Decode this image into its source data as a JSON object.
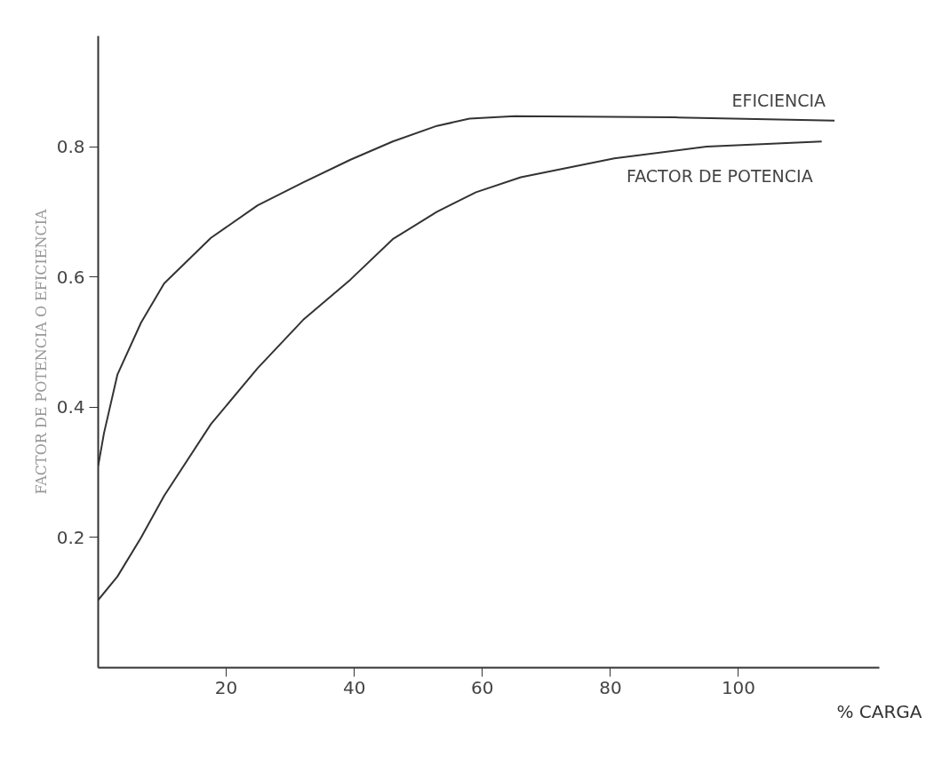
{
  "chart_data": {
    "type": "line",
    "xlabel": "% CARGA",
    "ylabel": "FACTOR DE POTENCIA O EFICIENCIA",
    "xlim": [
      0,
      122
    ],
    "ylim": [
      0,
      0.97
    ],
    "xticks": [
      20,
      40,
      60,
      80,
      100
    ],
    "yticks": [
      0.2,
      0.4,
      0.6,
      0.8
    ],
    "grid": false,
    "legend": false,
    "marker": "none",
    "line_style": "solid",
    "series": [
      {
        "name": "EFICIENCIA",
        "color": "#333333",
        "x": [
          0,
          0.9,
          3,
          6.7,
          10.3,
          17.6,
          24.9,
          32,
          39.4,
          46,
          52.9,
          58,
          65,
          90,
          115
        ],
        "values": [
          0.31,
          0.36,
          0.45,
          0.53,
          0.59,
          0.66,
          0.71,
          0.745,
          0.78,
          0.808,
          0.832,
          0.843,
          0.847,
          0.845,
          0.84
        ]
      },
      {
        "name": "FACTOR DE POTENCIA",
        "color": "#333333",
        "x": [
          0,
          3,
          6.7,
          10.3,
          17.6,
          24.9,
          32,
          39.4,
          46,
          52.9,
          59,
          66,
          80.6,
          95,
          113
        ],
        "values": [
          0.104,
          0.14,
          0.2,
          0.264,
          0.374,
          0.46,
          0.534,
          0.596,
          0.658,
          0.7,
          0.73,
          0.753,
          0.782,
          0.8,
          0.808
        ]
      }
    ]
  }
}
